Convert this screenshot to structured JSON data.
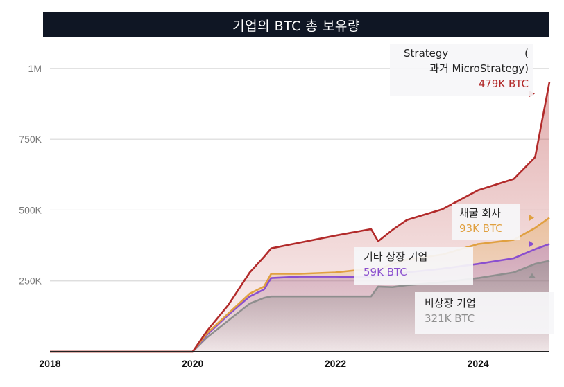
{
  "title": "기업의  BTC 총 보유량",
  "chart_data": {
    "type": "area",
    "title": "기업의  BTC 총 보유량",
    "xlabel": "",
    "ylabel": "",
    "y_tick_labels": [
      "250K",
      "500K",
      "750K",
      "1M"
    ],
    "y_tick_values": [
      250000,
      500000,
      750000,
      1000000
    ],
    "x_tick_labels": [
      "2018",
      "2020",
      "2022",
      "2024"
    ],
    "x_tick_values": [
      2018,
      2020,
      2022,
      2024
    ],
    "xlim": [
      2018,
      2025
    ],
    "ylim": [
      0,
      1100000
    ],
    "stacked": true,
    "grid": true,
    "series": [
      {
        "name": "비상장 기업",
        "value_label": "321K BTC",
        "color": "#8e8e8e",
        "x": [
          2018.0,
          2019.9,
          2020.0,
          2020.2,
          2020.5,
          2020.8,
          2021.0,
          2021.1,
          2021.5,
          2022.0,
          2022.5,
          2022.6,
          2022.8,
          2023.0,
          2023.5,
          2024.0,
          2024.5,
          2024.8,
          2025.0
        ],
        "values": [
          0,
          0,
          0,
          50000,
          110000,
          170000,
          190000,
          195000,
          195000,
          195000,
          195000,
          230000,
          228000,
          235000,
          245000,
          260000,
          280000,
          310000,
          321000
        ]
      },
      {
        "name": "기타 상장 기업",
        "value_label": "59K BTC",
        "color": "#8a4fcf",
        "x": [
          2018.0,
          2019.9,
          2020.0,
          2020.2,
          2020.5,
          2020.8,
          2021.0,
          2021.1,
          2021.5,
          2022.0,
          2022.5,
          2022.6,
          2022.8,
          2023.0,
          2023.5,
          2024.0,
          2024.5,
          2024.8,
          2025.0
        ],
        "values": [
          0,
          0,
          0,
          10000,
          20000,
          25000,
          30000,
          65000,
          70000,
          70000,
          68000,
          40000,
          42000,
          45000,
          48000,
          50000,
          50000,
          52000,
          59000
        ]
      },
      {
        "name": "채굴 회사",
        "value_label": "93K BTC",
        "color": "#e0a040",
        "x": [
          2018.0,
          2019.9,
          2020.0,
          2020.2,
          2020.5,
          2020.8,
          2021.0,
          2021.1,
          2021.5,
          2022.0,
          2022.5,
          2022.6,
          2022.8,
          2023.0,
          2023.5,
          2024.0,
          2024.5,
          2024.8,
          2025.0
        ],
        "values": [
          0,
          0,
          0,
          5000,
          5000,
          10000,
          10000,
          15000,
          10000,
          15000,
          30000,
          20000,
          40000,
          45000,
          50000,
          70000,
          65000,
          75000,
          93000
        ]
      },
      {
        "name": "Strategy                  (과거 MicroStrategy)",
        "value_label": "479K BTC",
        "color": "#b22a2a",
        "x": [
          2018.0,
          2019.9,
          2020.0,
          2020.2,
          2020.5,
          2020.8,
          2021.0,
          2021.1,
          2021.5,
          2022.0,
          2022.5,
          2022.6,
          2022.8,
          2023.0,
          2023.5,
          2024.0,
          2024.5,
          2024.8,
          2025.0
        ],
        "values": [
          0,
          0,
          0,
          8000,
          30000,
          75000,
          105000,
          90000,
          110000,
          130000,
          140000,
          100000,
          120000,
          140000,
          160000,
          190000,
          215000,
          250000,
          479000
        ]
      }
    ],
    "labels": {
      "strategy_line1": "Strategy",
      "strategy_paren": "(",
      "strategy_line2": "과거 MicroStrategy)",
      "strategy_value": "479K BTC",
      "mining_name": "채굴 회사",
      "mining_value": "93K BTC",
      "other_name": "기타 상장 기업",
      "other_value": "59K BTC",
      "private_name": "비상장 기업",
      "private_value": "321K BTC"
    },
    "colors": {
      "strategy": "#b22a2a",
      "mining": "#e0a040",
      "other": "#8a4fcf",
      "private": "#8e8e8e",
      "grid": "#d9d9d9",
      "tick_text": "#7a7a7a",
      "title_bg": "#0f1624"
    }
  }
}
